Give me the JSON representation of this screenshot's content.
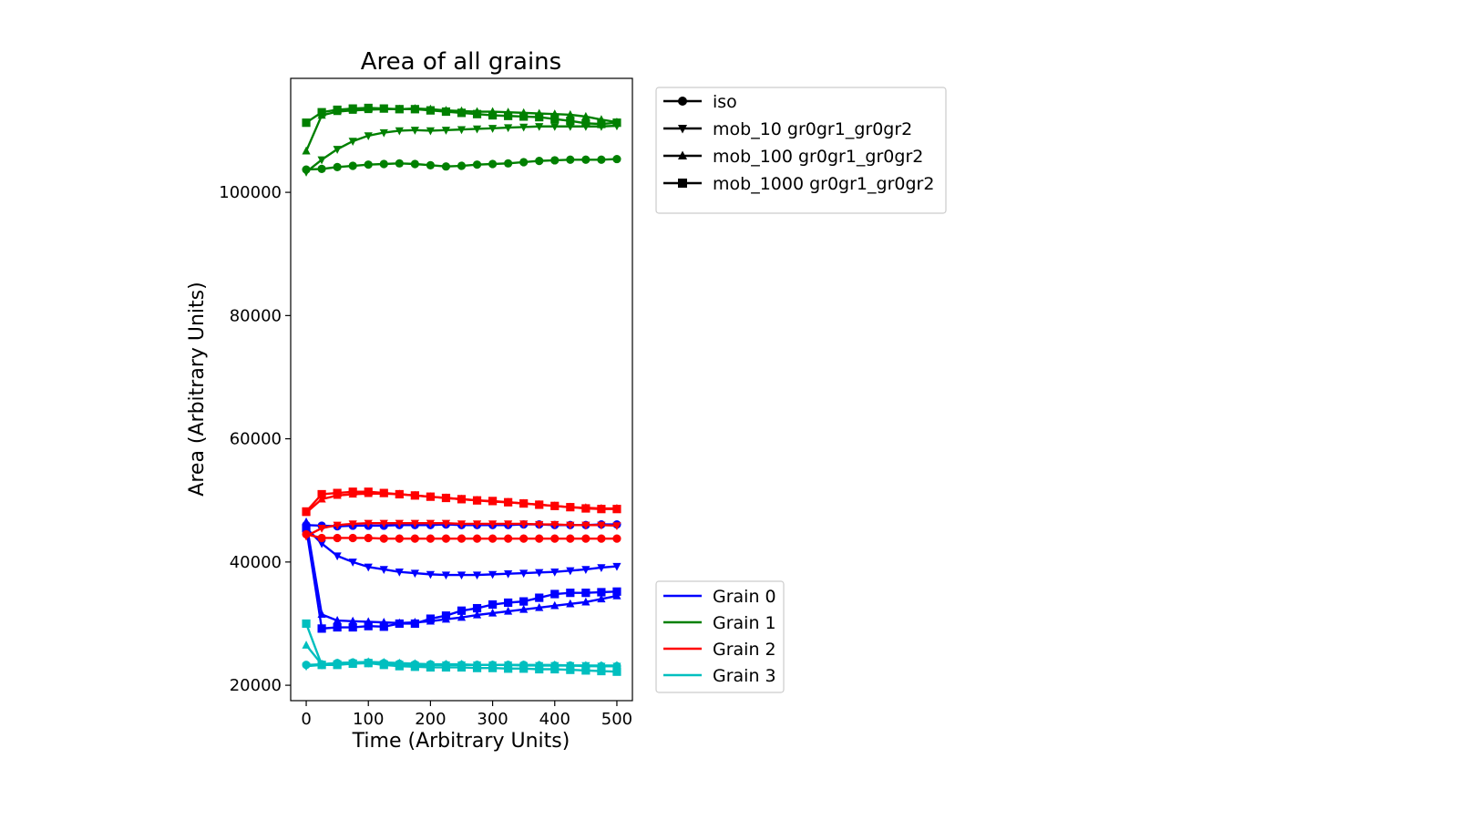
{
  "chart_data": {
    "type": "line",
    "title": "Area of all grains",
    "xlabel": "Time (Arbitrary Units)",
    "ylabel": "Area (Arbitrary Units)",
    "xlim": [
      -25,
      525
    ],
    "ylim": [
      17500,
      118500
    ],
    "x_ticks": [
      "0",
      "100",
      "200",
      "300",
      "400",
      "500"
    ],
    "y_ticks": [
      "20000",
      "40000",
      "60000",
      "80000",
      "100000"
    ],
    "grid": false,
    "x": [
      0,
      25,
      50,
      75,
      100,
      125,
      150,
      175,
      200,
      225,
      250,
      275,
      300,
      325,
      350,
      375,
      400,
      425,
      450,
      475,
      500
    ],
    "colors": {
      "Grain 0": "#0000ff",
      "Grain 1": "#008000",
      "Grain 2": "#ff0000",
      "Grain 3": "#00bfbf",
      "legend": "#000000"
    },
    "style_legend": {
      "placement": "upper right, outside axes",
      "entries": [
        {
          "label": "iso",
          "marker": "circle"
        },
        {
          "label": "mob_10 gr0gr1_gr0gr2",
          "marker": "triangle-down"
        },
        {
          "label": "mob_100 gr0gr1_gr0gr2",
          "marker": "triangle-up"
        },
        {
          "label": "mob_1000 gr0gr1_gr0gr2",
          "marker": "square"
        }
      ]
    },
    "grain_legend": {
      "placement": "lower right, outside axes",
      "entries": [
        "Grain 0",
        "Grain 1",
        "Grain 2",
        "Grain 3"
      ]
    },
    "series": [
      {
        "grain": "Grain 0",
        "style": "iso",
        "marker": "circle",
        "values": [
          46000,
          45900,
          45800,
          45900,
          45900,
          45900,
          46000,
          46000,
          46000,
          46100,
          46000,
          46000,
          46000,
          46000,
          46100,
          46100,
          46000,
          46000,
          46000,
          46100,
          46100
        ]
      },
      {
        "grain": "Grain 0",
        "style": "mob_10 gr0gr1_gr0gr2",
        "marker": "triangle-down",
        "values": [
          45500,
          43000,
          41000,
          40000,
          39200,
          38800,
          38400,
          38200,
          38000,
          37900,
          37900,
          37900,
          38000,
          38100,
          38200,
          38300,
          38400,
          38600,
          38800,
          39100,
          39300
        ]
      },
      {
        "grain": "Grain 0",
        "style": "mob_100 gr0gr1_gr0gr2",
        "marker": "triangle-up",
        "values": [
          46500,
          31500,
          30500,
          30400,
          30300,
          30200,
          30100,
          30200,
          30400,
          30700,
          31000,
          31400,
          31700,
          32000,
          32300,
          32600,
          32900,
          33200,
          33500,
          34000,
          34500
        ]
      },
      {
        "grain": "Grain 0",
        "style": "mob_1000 gr0gr1_gr0gr2",
        "marker": "square",
        "values": [
          45500,
          29200,
          29400,
          29400,
          29600,
          29500,
          30000,
          30000,
          30800,
          31300,
          32100,
          32500,
          33100,
          33400,
          33600,
          34200,
          34800,
          35000,
          35000,
          35100,
          35200
        ]
      },
      {
        "grain": "Grain 1",
        "style": "iso",
        "marker": "circle",
        "values": [
          103700,
          103800,
          104100,
          104300,
          104500,
          104600,
          104700,
          104600,
          104400,
          104200,
          104300,
          104500,
          104600,
          104700,
          104900,
          105100,
          105200,
          105300,
          105300,
          105300,
          105400
        ]
      },
      {
        "grain": "Grain 1",
        "style": "mob_10 gr0gr1_gr0gr2",
        "marker": "triangle-down",
        "values": [
          103300,
          105300,
          107000,
          108300,
          109200,
          109700,
          110000,
          110100,
          110000,
          110100,
          110200,
          110300,
          110400,
          110500,
          110600,
          110700,
          110700,
          110700,
          110700,
          110700,
          110800
        ]
      },
      {
        "grain": "Grain 1",
        "style": "mob_100 gr0gr1_gr0gr2",
        "marker": "triangle-up",
        "values": [
          106700,
          112500,
          113100,
          113300,
          113400,
          113500,
          113500,
          113600,
          113500,
          113300,
          113200,
          113100,
          113100,
          113000,
          112900,
          112800,
          112700,
          112600,
          112300,
          111800,
          111400
        ]
      },
      {
        "grain": "Grain 1",
        "style": "mob_1000 gr0gr1_gr0gr2",
        "marker": "square",
        "values": [
          111300,
          113000,
          113400,
          113600,
          113700,
          113600,
          113500,
          113500,
          113300,
          113100,
          112900,
          112700,
          112500,
          112400,
          112300,
          112200,
          111900,
          111600,
          111200,
          111100,
          111300
        ]
      },
      {
        "grain": "Grain 2",
        "style": "iso",
        "marker": "circle",
        "values": [
          44500,
          43900,
          43900,
          43900,
          43900,
          43800,
          43800,
          43800,
          43800,
          43800,
          43800,
          43800,
          43800,
          43800,
          43800,
          43800,
          43800,
          43800,
          43800,
          43800,
          43800
        ]
      },
      {
        "grain": "Grain 2",
        "style": "mob_10 gr0gr1_gr0gr2",
        "marker": "triangle-down",
        "values": [
          44200,
          45500,
          46000,
          46200,
          46300,
          46300,
          46300,
          46300,
          46300,
          46300,
          46200,
          46200,
          46200,
          46200,
          46200,
          46100,
          46100,
          46000,
          46000,
          46000,
          45900
        ]
      },
      {
        "grain": "Grain 2",
        "style": "mob_100 gr0gr1_gr0gr2",
        "marker": "triangle-up",
        "values": [
          48000,
          50200,
          50800,
          51000,
          51100,
          51100,
          51000,
          50800,
          50600,
          50400,
          50200,
          50000,
          49800,
          49700,
          49500,
          49300,
          49100,
          48900,
          48800,
          48700,
          48700
        ]
      },
      {
        "grain": "Grain 2",
        "style": "mob_1000 gr0gr1_gr0gr2",
        "marker": "square",
        "values": [
          48200,
          51000,
          51200,
          51400,
          51400,
          51200,
          51000,
          50800,
          50600,
          50400,
          50200,
          50000,
          49900,
          49700,
          49500,
          49300,
          49100,
          48900,
          48700,
          48600,
          48600
        ]
      },
      {
        "grain": "Grain 3",
        "style": "iso",
        "marker": "circle",
        "values": [
          23300,
          23400,
          23600,
          23700,
          23700,
          23600,
          23500,
          23400,
          23400,
          23300,
          23300,
          23300,
          23300,
          23300,
          23300,
          23200,
          23200,
          23200,
          23100,
          23100,
          23100
        ]
      },
      {
        "grain": "Grain 3",
        "style": "mob_10 gr0gr1_gr0gr2",
        "marker": "triangle-down",
        "values": [
          23100,
          23300,
          23500,
          23600,
          23600,
          23500,
          23400,
          23300,
          23300,
          23300,
          23300,
          23300,
          23300,
          23300,
          23200,
          23200,
          23200,
          23200,
          23200,
          23100,
          23100
        ]
      },
      {
        "grain": "Grain 3",
        "style": "mob_100 gr0gr1_gr0gr2",
        "marker": "triangle-up",
        "values": [
          26500,
          23400,
          23600,
          23700,
          23800,
          23700,
          23600,
          23500,
          23400,
          23400,
          23400,
          23300,
          23300,
          23300,
          23300,
          23300,
          23300,
          23200,
          23200,
          23200,
          23200
        ]
      },
      {
        "grain": "Grain 3",
        "style": "mob_1000 gr0gr1_gr0gr2",
        "marker": "square",
        "values": [
          30000,
          23300,
          23300,
          23500,
          23600,
          23300,
          23100,
          23000,
          22900,
          22900,
          22900,
          22800,
          22800,
          22700,
          22700,
          22600,
          22600,
          22500,
          22400,
          22300,
          22200
        ]
      }
    ]
  }
}
